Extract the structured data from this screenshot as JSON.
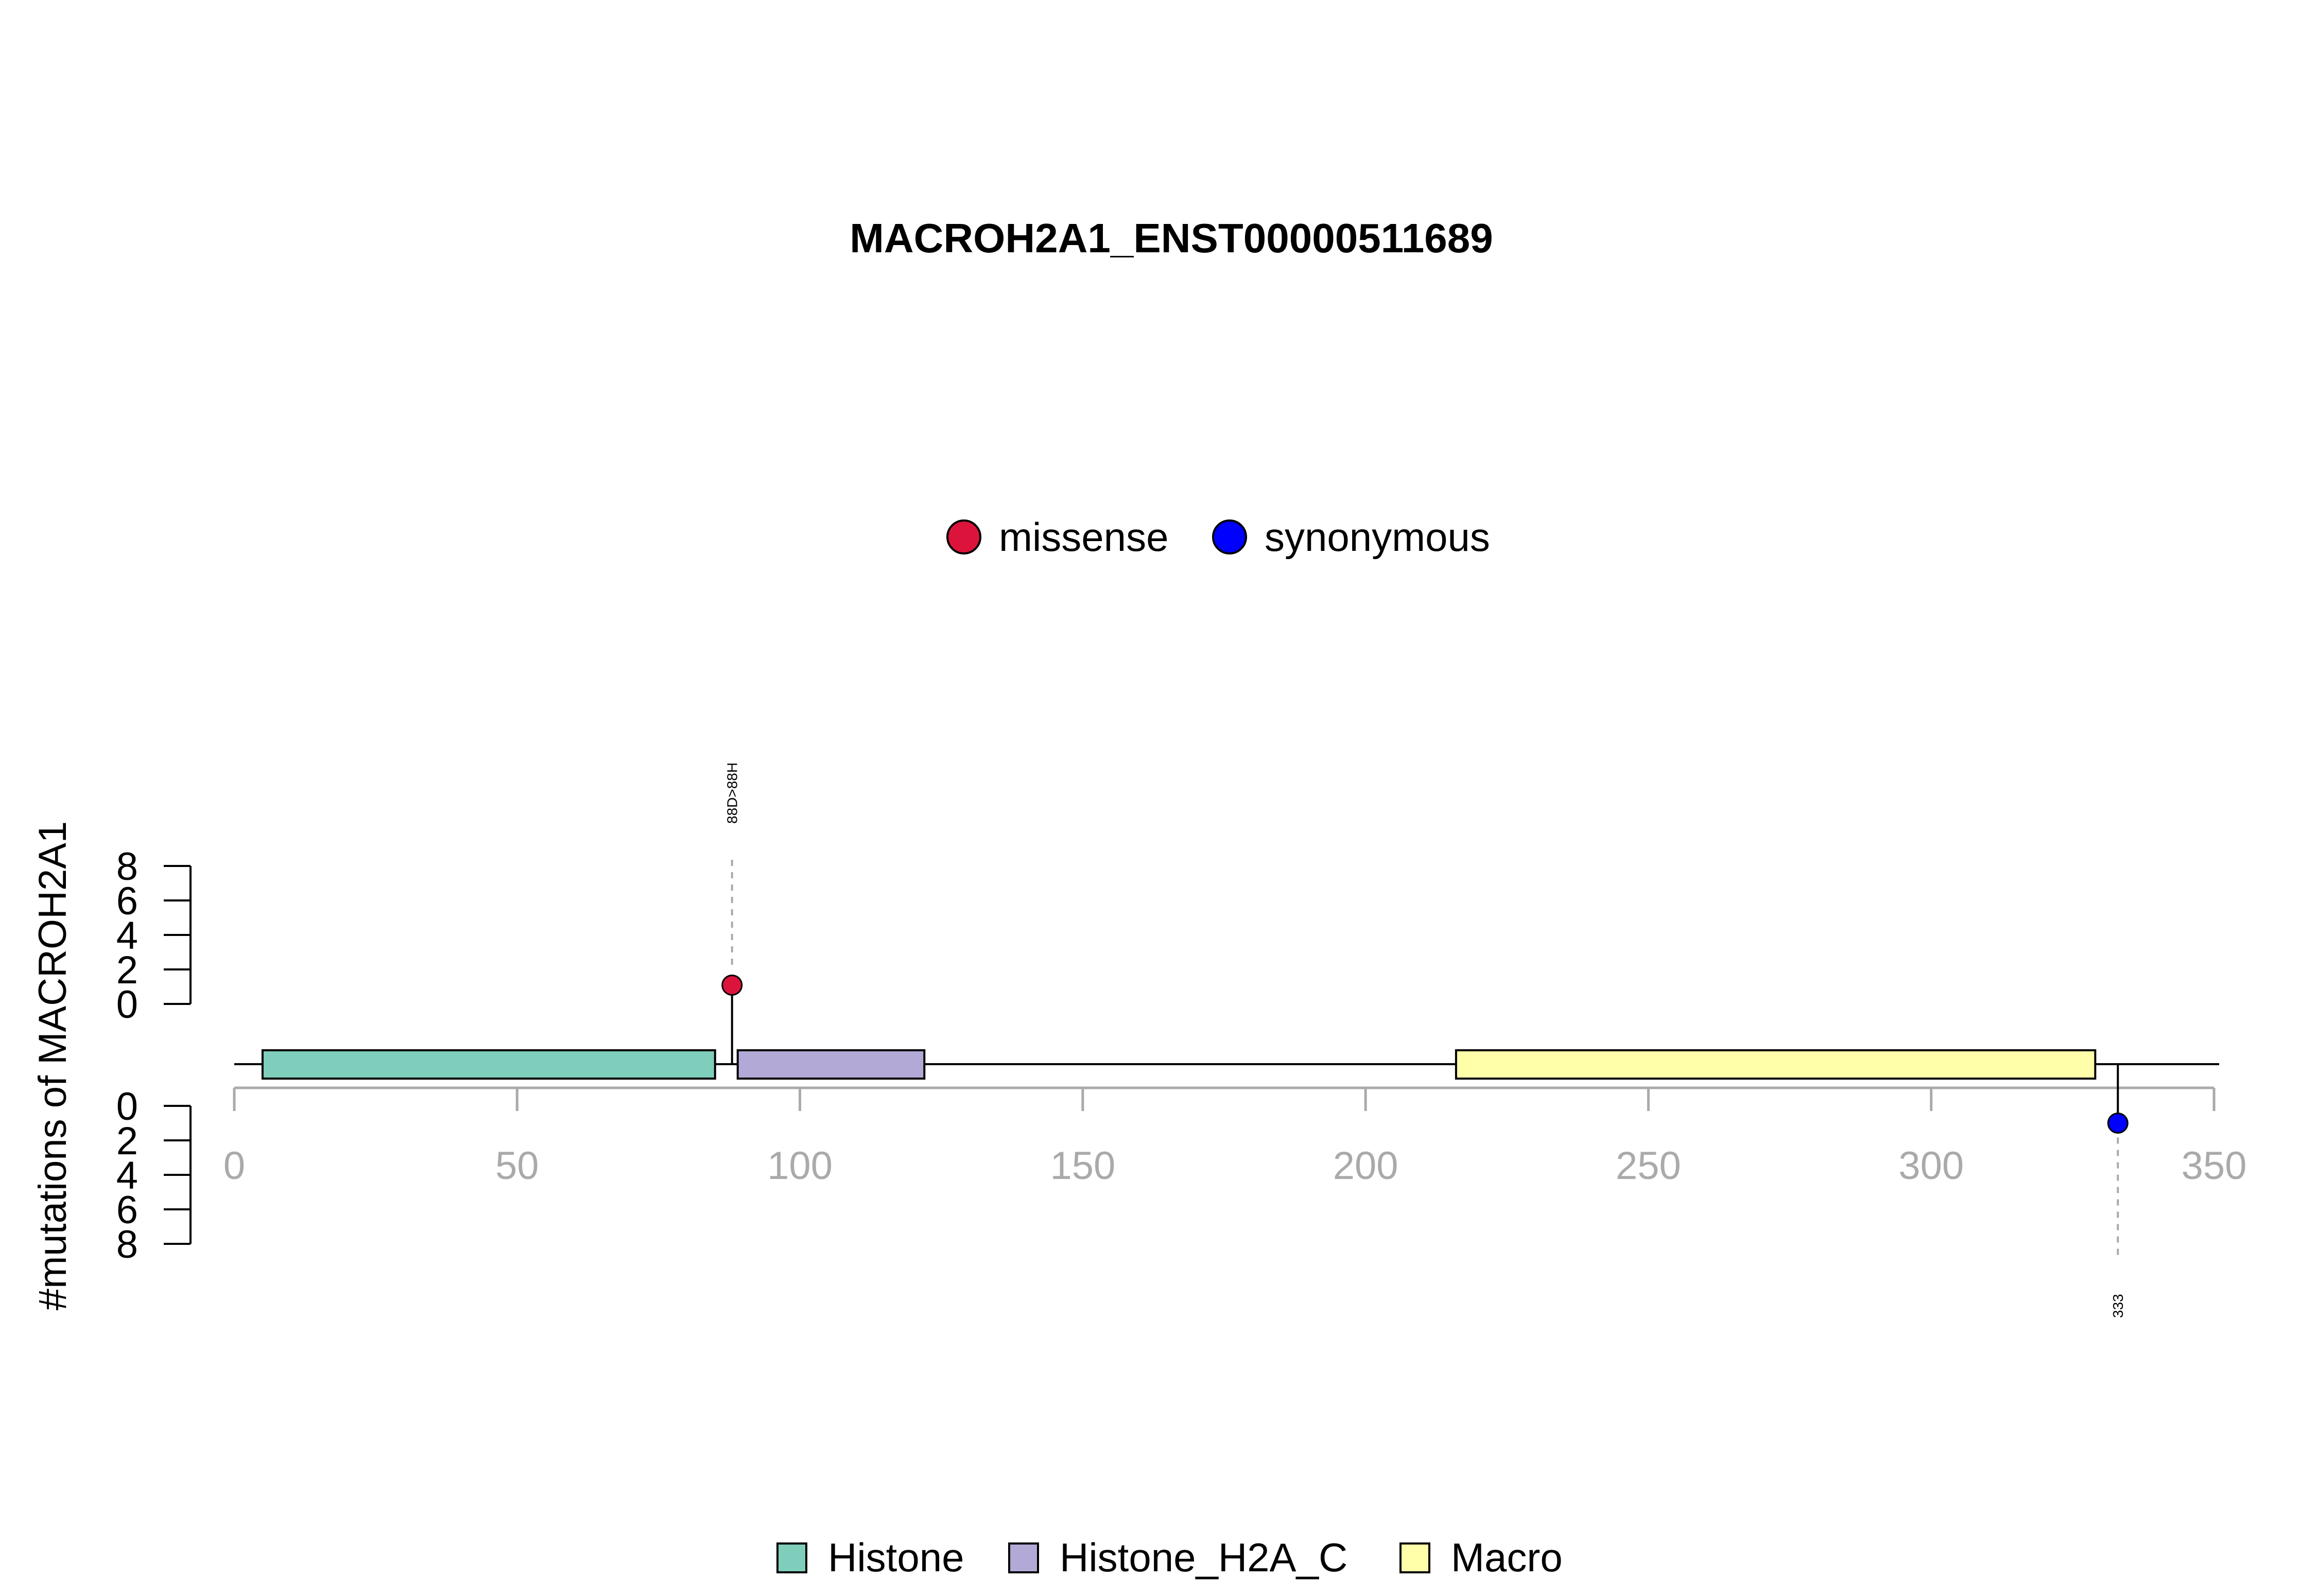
{
  "chart_data": {
    "type": "lollipop",
    "title": "MACROH2A1_ENST00000511689",
    "ylabel": "#mutations of MACROH2A1",
    "xlim": [
      0,
      350
    ],
    "x_ticks": [
      0,
      50,
      100,
      150,
      200,
      250,
      300,
      350
    ],
    "y_ticks_top": [
      0,
      2,
      4,
      6,
      8
    ],
    "y_ticks_bottom": [
      0,
      2,
      4,
      6,
      8
    ],
    "ylim": [
      0,
      8
    ],
    "mutation_legend": [
      {
        "label": "missense",
        "color": "#DC143C"
      },
      {
        "label": "synonymous",
        "color": "#0000FF"
      }
    ],
    "domain_legend": [
      {
        "label": "Histone",
        "color": "#7FCDBB"
      },
      {
        "label": "Histone_H2A_C",
        "color": "#B3A9D6"
      },
      {
        "label": "Macro",
        "color": "#FFFFAA"
      }
    ],
    "domains": [
      {
        "name": "Histone",
        "start": 5,
        "end": 85,
        "color": "#7FCDBB"
      },
      {
        "name": "Histone_H2A_C",
        "start": 89,
        "end": 122,
        "color": "#B3A9D6"
      },
      {
        "name": "Macro",
        "start": 216,
        "end": 329,
        "color": "#FFFFAA"
      }
    ],
    "mutations": [
      {
        "position": 88,
        "count": 1,
        "type": "missense",
        "side": "top",
        "label": "88D>88H"
      },
      {
        "position": 333,
        "count": 1,
        "type": "synonymous",
        "side": "bottom",
        "label": "333"
      }
    ]
  }
}
